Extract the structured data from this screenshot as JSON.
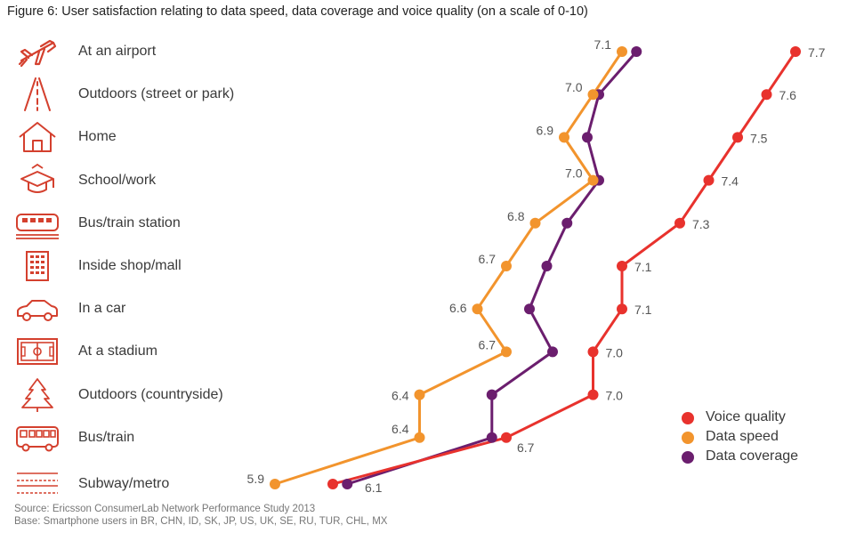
{
  "title": "Figure 6: User satisfaction relating to data speed, data coverage and voice quality (on a scale of 0-10)",
  "footnotes": {
    "source": "Source: Ericsson ConsumerLab Network Performance Study 2013",
    "base": "Base: Smartphone users in BR, CHN, ID, SK, JP, US, UK, SE, RU, TUR, CHL, MX"
  },
  "colors": {
    "voice": "#e8322d",
    "speed": "#f2942d",
    "coverage": "#6b1e6e",
    "icon": "#d4402e"
  },
  "rows": [
    {
      "label": "At an airport",
      "icon": "airplane-icon"
    },
    {
      "label": "Outdoors (street or park)",
      "icon": "road-icon"
    },
    {
      "label": "Home",
      "icon": "house-icon"
    },
    {
      "label": "School/work",
      "icon": "graduation-cap-icon"
    },
    {
      "label": "Bus/train station",
      "icon": "train-icon"
    },
    {
      "label": "Inside shop/mall",
      "icon": "building-icon"
    },
    {
      "label": "In a car",
      "icon": "car-icon"
    },
    {
      "label": "At a stadium",
      "icon": "stadium-icon"
    },
    {
      "label": "Outdoors (countryside)",
      "icon": "tree-icon"
    },
    {
      "label": "Bus/train",
      "icon": "bus-icon"
    },
    {
      "label": "Subway/metro",
      "icon": "subway-icon"
    }
  ],
  "chart_data": {
    "type": "line",
    "title": "Figure 6: User satisfaction relating to data speed, data coverage and voice quality (on a scale of 0-10)",
    "orientation": "horizontal",
    "categories": [
      "At an airport",
      "Outdoors (street or park)",
      "Home",
      "School/work",
      "Bus/train station",
      "Inside shop/mall",
      "In a car",
      "At a stadium",
      "Outdoors (countryside)",
      "Bus/train",
      "Subway/metro"
    ],
    "series": [
      {
        "name": "Voice quality",
        "key": "voice",
        "values": [
          7.7,
          7.6,
          7.5,
          7.4,
          7.3,
          7.1,
          7.1,
          7.0,
          7.0,
          6.7,
          6.1
        ],
        "labels": [
          "7.7",
          "7.6",
          "7.5",
          "7.4",
          "7.3",
          "7.1",
          "7.1",
          "7.0",
          "7.0",
          "6.7",
          "6.1"
        ]
      },
      {
        "name": "Data speed",
        "key": "speed",
        "values": [
          7.1,
          7.0,
          6.9,
          7.0,
          6.8,
          6.7,
          6.6,
          6.7,
          6.4,
          6.4,
          5.9
        ],
        "labels": [
          "7.1",
          "7.0",
          "6.9",
          "7.0",
          "6.8",
          "6.7",
          "6.6",
          "6.7",
          "6.4",
          "6.4",
          "5.9"
        ]
      },
      {
        "name": "Data coverage",
        "key": "coverage",
        "values": [
          7.15,
          7.02,
          6.98,
          7.02,
          6.91,
          6.84,
          6.78,
          6.86,
          6.65,
          6.65,
          6.15
        ]
      }
    ],
    "xlim": [
      5.5,
      8.0
    ],
    "legend": "bottom-right"
  }
}
